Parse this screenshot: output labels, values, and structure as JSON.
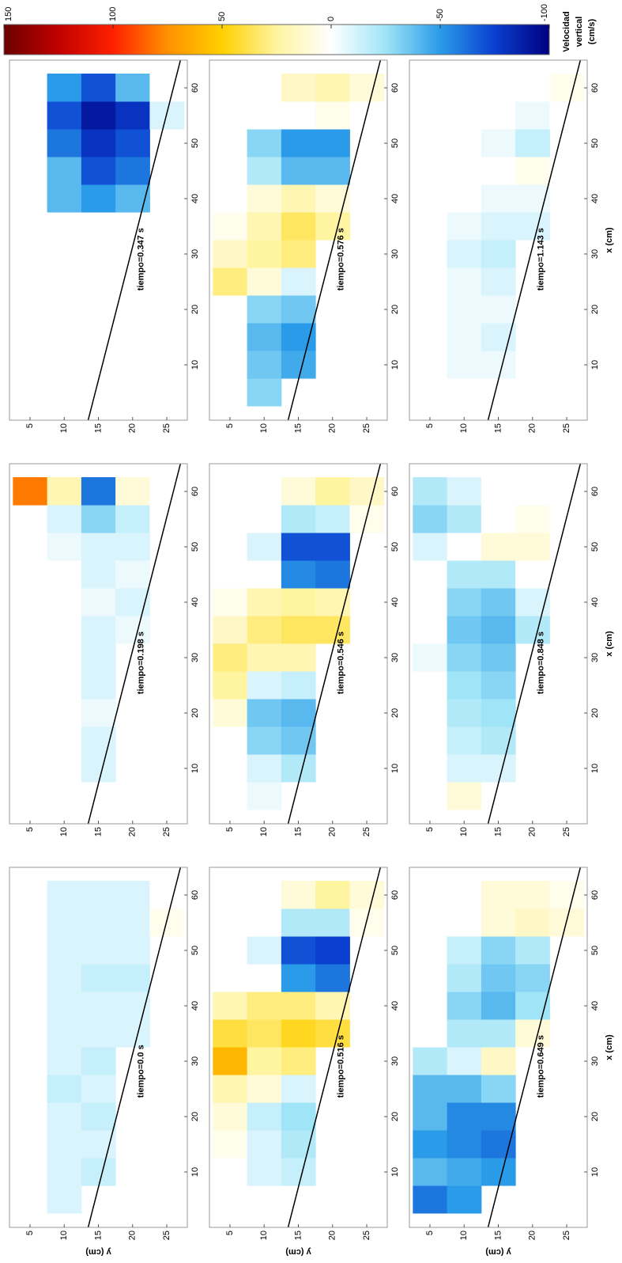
{
  "colorbar": {
    "label": [
      "Velocidad",
      "vertical",
      "(cm/s)"
    ],
    "zlim": [
      -100,
      150
    ],
    "ticks": [
      150,
      100,
      50,
      0,
      -50,
      -100
    ],
    "colors": [
      "#00007f",
      "#0a3fd0",
      "#2a9be8",
      "#9fe4f7",
      "#ffffff",
      "#fff4a0",
      "#ffd000",
      "#ff9000",
      "#ff2000",
      "#c00000",
      "#6b0000"
    ]
  },
  "chart_data": [
    {
      "type": "heatmap",
      "title": "tiempo=0.0 s",
      "ylabel": "y (cm)",
      "x": [
        5,
        10,
        15,
        20,
        25,
        30,
        35,
        40,
        45,
        50,
        55,
        60
      ],
      "y": [
        5,
        10,
        15,
        20,
        25
      ],
      "z": [
        [
          0,
          0,
          0,
          0,
          0,
          0,
          0,
          0,
          0,
          0,
          0,
          0
        ],
        [
          -10,
          -10,
          -10,
          -10,
          -15,
          -10,
          -10,
          -10,
          -10,
          -10,
          -10,
          -10
        ],
        [
          null,
          -15,
          -10,
          -15,
          -10,
          -15,
          -10,
          -10,
          -15,
          -10,
          -10,
          -10
        ],
        [
          null,
          null,
          null,
          null,
          null,
          null,
          -10,
          -10,
          -15,
          -10,
          -10,
          -10
        ],
        [
          null,
          null,
          null,
          null,
          null,
          null,
          null,
          null,
          null,
          null,
          5,
          0
        ]
      ],
      "bed": {
        "x": [
          0,
          65
        ],
        "y": [
          13.5,
          27
        ]
      },
      "xlim": [
        0,
        65
      ],
      "ylim": [
        2,
        28
      ],
      "y_inverted": true,
      "xticks": [
        10,
        20,
        30,
        40,
        50,
        60
      ],
      "yticks": [
        5,
        10,
        15,
        20,
        25
      ]
    },
    {
      "type": "heatmap",
      "title": "tiempo=0.198 s",
      "x": [
        5,
        10,
        15,
        20,
        25,
        30,
        35,
        40,
        45,
        50,
        55,
        60
      ],
      "y": [
        5,
        10,
        15,
        20,
        25
      ],
      "z": [
        [
          0,
          0,
          0,
          0,
          0,
          0,
          0,
          0,
          0,
          0,
          0,
          80
        ],
        [
          0,
          0,
          0,
          0,
          0,
          0,
          0,
          0,
          0,
          -5,
          -10,
          20
        ],
        [
          null,
          -10,
          -10,
          -5,
          -10,
          -10,
          -10,
          -5,
          -10,
          -10,
          -30,
          -60
        ],
        [
          null,
          null,
          null,
          null,
          null,
          null,
          -5,
          -10,
          -5,
          -10,
          -15,
          10
        ],
        [
          null,
          null,
          null,
          null,
          null,
          null,
          null,
          null,
          null,
          null,
          0,
          0
        ]
      ],
      "bed": {
        "x": [
          0,
          65
        ],
        "y": [
          13.5,
          27
        ]
      },
      "xlim": [
        0,
        65
      ],
      "ylim": [
        2,
        28
      ],
      "y_inverted": true,
      "xticks": [
        10,
        20,
        30,
        40,
        50,
        60
      ],
      "yticks": [
        5,
        10,
        15,
        20,
        25
      ]
    },
    {
      "type": "heatmap",
      "title": "tiempo=0.347 s",
      "x": [
        5,
        10,
        15,
        20,
        25,
        30,
        35,
        40,
        45,
        50,
        55,
        60
      ],
      "y": [
        5,
        10,
        15,
        20,
        25
      ],
      "z": [
        [
          0,
          0,
          0,
          0,
          0,
          0,
          0,
          0,
          0,
          0,
          0,
          0
        ],
        [
          0,
          0,
          0,
          0,
          0,
          0,
          0,
          -40,
          -40,
          -60,
          -70,
          -50
        ],
        [
          null,
          0,
          0,
          0,
          0,
          0,
          0,
          -50,
          -70,
          -80,
          -90,
          -70
        ],
        [
          null,
          null,
          null,
          null,
          null,
          null,
          0,
          -40,
          -60,
          -70,
          -80,
          -40
        ],
        [
          null,
          null,
          null,
          null,
          null,
          null,
          null,
          null,
          null,
          null,
          -10,
          0
        ]
      ],
      "bed": {
        "x": [
          0,
          65
        ],
        "y": [
          13.5,
          27
        ]
      },
      "xlim": [
        0,
        65
      ],
      "ylim": [
        2,
        28
      ],
      "y_inverted": true,
      "xticks": [
        10,
        20,
        30,
        40,
        50,
        60
      ],
      "yticks": [
        5,
        10,
        15,
        20,
        25
      ]
    },
    {
      "type": "heatmap",
      "title": "tiempo=0.516 s",
      "ylabel": "y (cm)",
      "x": [
        5,
        10,
        15,
        20,
        25,
        30,
        35,
        40,
        45,
        50,
        55,
        60
      ],
      "y": [
        5,
        10,
        15,
        20,
        25
      ],
      "z": [
        [
          0,
          0,
          5,
          10,
          20,
          60,
          40,
          20,
          0,
          0,
          0,
          0
        ],
        [
          0,
          -10,
          -10,
          -15,
          10,
          25,
          35,
          30,
          0,
          -10,
          0,
          0
        ],
        [
          null,
          -15,
          -20,
          -25,
          -10,
          30,
          45,
          30,
          -50,
          -70,
          -20,
          10
        ],
        [
          null,
          null,
          null,
          null,
          null,
          null,
          40,
          20,
          -60,
          -75,
          -20,
          25
        ],
        [
          null,
          null,
          null,
          null,
          null,
          null,
          null,
          null,
          null,
          null,
          5,
          10
        ]
      ],
      "bed": {
        "x": [
          0,
          65
        ],
        "y": [
          13.5,
          27
        ]
      },
      "xlim": [
        0,
        65
      ],
      "ylim": [
        2,
        28
      ],
      "y_inverted": true,
      "xticks": [
        10,
        20,
        30,
        40,
        50,
        60
      ],
      "yticks": [
        5,
        10,
        15,
        20,
        25
      ]
    },
    {
      "type": "heatmap",
      "title": "tiempo=0.546 s",
      "x": [
        5,
        10,
        15,
        20,
        25,
        30,
        35,
        40,
        45,
        50,
        55,
        60
      ],
      "y": [
        5,
        10,
        15,
        20,
        25
      ],
      "z": [
        [
          0,
          0,
          0,
          10,
          25,
          30,
          15,
          5,
          0,
          0,
          0,
          0
        ],
        [
          -5,
          -10,
          -30,
          -35,
          -10,
          20,
          30,
          20,
          0,
          -10,
          0,
          0
        ],
        [
          null,
          -20,
          -35,
          -40,
          -15,
          20,
          35,
          25,
          -55,
          -70,
          -20,
          10
        ],
        [
          null,
          null,
          null,
          null,
          null,
          null,
          35,
          20,
          -60,
          -70,
          -15,
          25
        ],
        [
          null,
          null,
          null,
          null,
          null,
          null,
          null,
          null,
          null,
          null,
          5,
          15
        ]
      ],
      "bed": {
        "x": [
          0,
          65
        ],
        "y": [
          13.5,
          27
        ]
      },
      "xlim": [
        0,
        65
      ],
      "ylim": [
        2,
        28
      ],
      "y_inverted": true,
      "xticks": [
        10,
        20,
        30,
        40,
        50,
        60
      ],
      "yticks": [
        5,
        10,
        15,
        20,
        25
      ]
    },
    {
      "type": "heatmap",
      "title": "tiempo=0.576 s",
      "x": [
        5,
        10,
        15,
        20,
        25,
        30,
        35,
        40,
        45,
        50,
        55,
        60
      ],
      "y": [
        5,
        10,
        15,
        20,
        25
      ],
      "z": [
        [
          0,
          0,
          0,
          0,
          30,
          15,
          5,
          0,
          0,
          0,
          0,
          0
        ],
        [
          -30,
          -35,
          -40,
          -30,
          10,
          25,
          20,
          10,
          -20,
          -30,
          0,
          0
        ],
        [
          null,
          -45,
          -50,
          -35,
          -10,
          30,
          35,
          20,
          -40,
          -50,
          0,
          15
        ],
        [
          null,
          null,
          null,
          null,
          null,
          null,
          25,
          10,
          -40,
          -50,
          5,
          20
        ],
        [
          null,
          null,
          null,
          null,
          null,
          null,
          null,
          null,
          null,
          null,
          0,
          10
        ]
      ],
      "bed": {
        "x": [
          0,
          65
        ],
        "y": [
          13.5,
          27
        ]
      },
      "xlim": [
        0,
        65
      ],
      "ylim": [
        2,
        28
      ],
      "y_inverted": true,
      "xticks": [
        10,
        20,
        30,
        40,
        50,
        60
      ],
      "yticks": [
        5,
        10,
        15,
        20,
        25
      ]
    },
    {
      "type": "heatmap",
      "title": "tiempo=0.649 s",
      "ylabel": "y (cm)",
      "xlabel": "x (cm)",
      "x": [
        5,
        10,
        15,
        20,
        25,
        30,
        35,
        40,
        45,
        50,
        55,
        60
      ],
      "y": [
        5,
        10,
        15,
        20,
        25
      ],
      "z": [
        [
          -60,
          -40,
          -50,
          -40,
          -40,
          -20,
          0,
          0,
          0,
          0,
          0,
          0
        ],
        [
          -50,
          -45,
          -55,
          -55,
          -40,
          -10,
          -20,
          -30,
          -20,
          -15,
          0,
          0
        ],
        [
          null,
          -50,
          -60,
          -55,
          -30,
          15,
          -20,
          -40,
          -35,
          -30,
          10,
          10
        ],
        [
          null,
          null,
          null,
          null,
          null,
          null,
          10,
          -25,
          -30,
          -20,
          15,
          10
        ],
        [
          null,
          null,
          null,
          null,
          null,
          null,
          null,
          null,
          null,
          null,
          10,
          5
        ]
      ],
      "bed": {
        "x": [
          0,
          65
        ],
        "y": [
          13.5,
          27
        ]
      },
      "xlim": [
        0,
        65
      ],
      "ylim": [
        2,
        28
      ],
      "y_inverted": true,
      "xticks": [
        10,
        20,
        30,
        40,
        50,
        60
      ],
      "yticks": [
        5,
        10,
        15,
        20,
        25
      ]
    },
    {
      "type": "heatmap",
      "title": "tiempo=0.848 s",
      "xlabel": "x (cm)",
      "x": [
        5,
        10,
        15,
        20,
        25,
        30,
        35,
        40,
        45,
        50,
        55,
        60
      ],
      "y": [
        5,
        10,
        15,
        20,
        25
      ],
      "z": [
        [
          0,
          0,
          0,
          0,
          0,
          -5,
          0,
          0,
          0,
          -10,
          -30,
          -20
        ],
        [
          10,
          -10,
          -15,
          -20,
          -25,
          -30,
          -35,
          -30,
          -20,
          0,
          -20,
          -10
        ],
        [
          null,
          -10,
          -20,
          -25,
          -30,
          -35,
          -40,
          -35,
          -20,
          10,
          0,
          0
        ],
        [
          null,
          null,
          null,
          null,
          null,
          null,
          -20,
          -10,
          0,
          10,
          5,
          0
        ],
        [
          null,
          null,
          null,
          null,
          null,
          null,
          null,
          null,
          null,
          null,
          0,
          0
        ]
      ],
      "bed": {
        "x": [
          0,
          65
        ],
        "y": [
          13.5,
          27
        ]
      },
      "xlim": [
        0,
        65
      ],
      "ylim": [
        2,
        28
      ],
      "y_inverted": true,
      "xticks": [
        10,
        20,
        30,
        40,
        50,
        60
      ],
      "yticks": [
        5,
        10,
        15,
        20,
        25
      ]
    },
    {
      "type": "heatmap",
      "title": "tiempo=1.143 s",
      "xlabel": "x (cm)",
      "x": [
        5,
        10,
        15,
        20,
        25,
        30,
        35,
        40,
        45,
        50,
        55,
        60
      ],
      "y": [
        5,
        10,
        15,
        20,
        25
      ],
      "z": [
        [
          0,
          0,
          0,
          0,
          0,
          0,
          0,
          0,
          0,
          0,
          0,
          0
        ],
        [
          0,
          -5,
          -5,
          -5,
          -5,
          -10,
          -5,
          0,
          0,
          0,
          0,
          0
        ],
        [
          null,
          -5,
          -10,
          -5,
          -10,
          -15,
          -10,
          -5,
          0,
          -5,
          0,
          0
        ],
        [
          null,
          null,
          null,
          null,
          null,
          null,
          -10,
          -5,
          5,
          -15,
          -5,
          0
        ],
        [
          null,
          null,
          null,
          null,
          null,
          null,
          null,
          null,
          null,
          null,
          0,
          5
        ]
      ],
      "bed": {
        "x": [
          0,
          65
        ],
        "y": [
          13.5,
          27
        ]
      },
      "xlim": [
        0,
        65
      ],
      "ylim": [
        2,
        28
      ],
      "y_inverted": true,
      "xticks": [
        10,
        20,
        30,
        40,
        50,
        60
      ],
      "yticks": [
        5,
        10,
        15,
        20,
        25
      ]
    }
  ]
}
